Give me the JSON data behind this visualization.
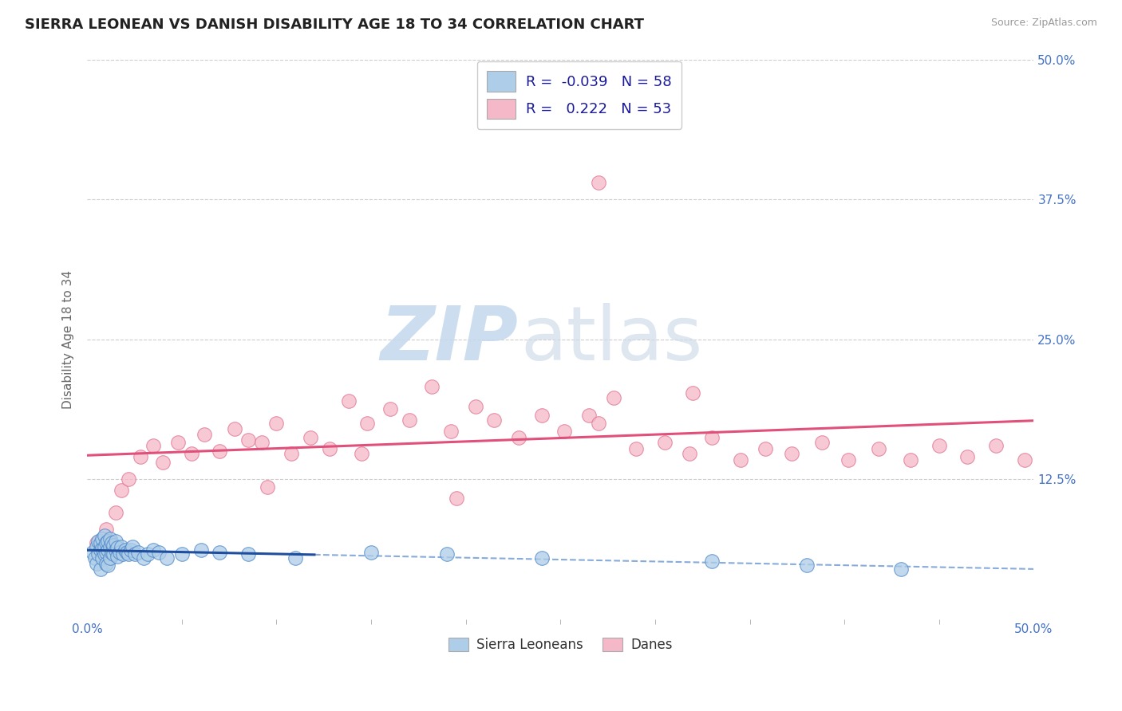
{
  "title": "SIERRA LEONEAN VS DANISH DISABILITY AGE 18 TO 34 CORRELATION CHART",
  "source_text": "Source: ZipAtlas.com",
  "ylabel": "Disability Age 18 to 34",
  "xlim": [
    0.0,
    0.5
  ],
  "ylim": [
    0.0,
    0.5
  ],
  "x_ticks": [
    0.0,
    0.5
  ],
  "x_tick_labels": [
    "0.0%",
    "50.0%"
  ],
  "y_ticks": [
    0.125,
    0.25,
    0.375,
    0.5
  ],
  "y_tick_labels": [
    "12.5%",
    "25.0%",
    "37.5%",
    "50.0%"
  ],
  "sl_R": "-0.039",
  "sl_N": "58",
  "dane_R": "0.222",
  "dane_N": "53",
  "sl_fill_color": "#aecde8",
  "sl_edge_color": "#4a86c8",
  "sl_line_color": "#1f4e9e",
  "sl_dash_color": "#5588cc",
  "dane_fill_color": "#f5b8c8",
  "dane_edge_color": "#e07090",
  "dane_line_color": "#e0507a",
  "dane_dash_color": "#e07090",
  "background_color": "#ffffff",
  "grid_color": "#cccccc",
  "tick_color": "#4472c4",
  "title_fontsize": 13,
  "label_fontsize": 11,
  "tick_fontsize": 11,
  "sl_scatter_x": [
    0.003,
    0.004,
    0.005,
    0.005,
    0.006,
    0.006,
    0.007,
    0.007,
    0.007,
    0.008,
    0.008,
    0.008,
    0.009,
    0.009,
    0.009,
    0.01,
    0.01,
    0.01,
    0.011,
    0.011,
    0.011,
    0.012,
    0.012,
    0.012,
    0.013,
    0.013,
    0.014,
    0.014,
    0.015,
    0.015,
    0.016,
    0.016,
    0.017,
    0.018,
    0.019,
    0.02,
    0.021,
    0.022,
    0.023,
    0.024,
    0.025,
    0.027,
    0.03,
    0.032,
    0.035,
    0.038,
    0.042,
    0.05,
    0.06,
    0.07,
    0.085,
    0.11,
    0.15,
    0.19,
    0.24,
    0.33,
    0.38,
    0.43
  ],
  "sl_scatter_y": [
    0.06,
    0.055,
    0.05,
    0.065,
    0.058,
    0.07,
    0.062,
    0.068,
    0.045,
    0.055,
    0.063,
    0.072,
    0.058,
    0.065,
    0.075,
    0.06,
    0.068,
    0.05,
    0.062,
    0.07,
    0.048,
    0.055,
    0.065,
    0.072,
    0.06,
    0.068,
    0.058,
    0.066,
    0.062,
    0.07,
    0.056,
    0.064,
    0.06,
    0.065,
    0.058,
    0.062,
    0.06,
    0.058,
    0.062,
    0.065,
    0.058,
    0.06,
    0.055,
    0.058,
    0.062,
    0.06,
    0.055,
    0.058,
    0.062,
    0.06,
    0.058,
    0.055,
    0.06,
    0.058,
    0.055,
    0.052,
    0.048,
    0.045
  ],
  "dane_scatter_x": [
    0.005,
    0.01,
    0.015,
    0.018,
    0.022,
    0.028,
    0.035,
    0.04,
    0.048,
    0.055,
    0.062,
    0.07,
    0.078,
    0.085,
    0.092,
    0.1,
    0.108,
    0.118,
    0.128,
    0.138,
    0.148,
    0.16,
    0.17,
    0.182,
    0.192,
    0.205,
    0.215,
    0.228,
    0.24,
    0.252,
    0.265,
    0.278,
    0.29,
    0.305,
    0.318,
    0.33,
    0.345,
    0.358,
    0.372,
    0.388,
    0.402,
    0.418,
    0.435,
    0.45,
    0.465,
    0.48,
    0.495,
    0.27,
    0.095,
    0.32,
    0.195,
    0.145,
    0.27
  ],
  "dane_scatter_y": [
    0.068,
    0.08,
    0.095,
    0.115,
    0.125,
    0.145,
    0.155,
    0.14,
    0.158,
    0.148,
    0.165,
    0.15,
    0.17,
    0.16,
    0.158,
    0.175,
    0.148,
    0.162,
    0.152,
    0.195,
    0.175,
    0.188,
    0.178,
    0.208,
    0.168,
    0.19,
    0.178,
    0.162,
    0.182,
    0.168,
    0.182,
    0.198,
    0.152,
    0.158,
    0.148,
    0.162,
    0.142,
    0.152,
    0.148,
    0.158,
    0.142,
    0.152,
    0.142,
    0.155,
    0.145,
    0.155,
    0.142,
    0.175,
    0.118,
    0.202,
    0.108,
    0.148,
    0.39
  ]
}
